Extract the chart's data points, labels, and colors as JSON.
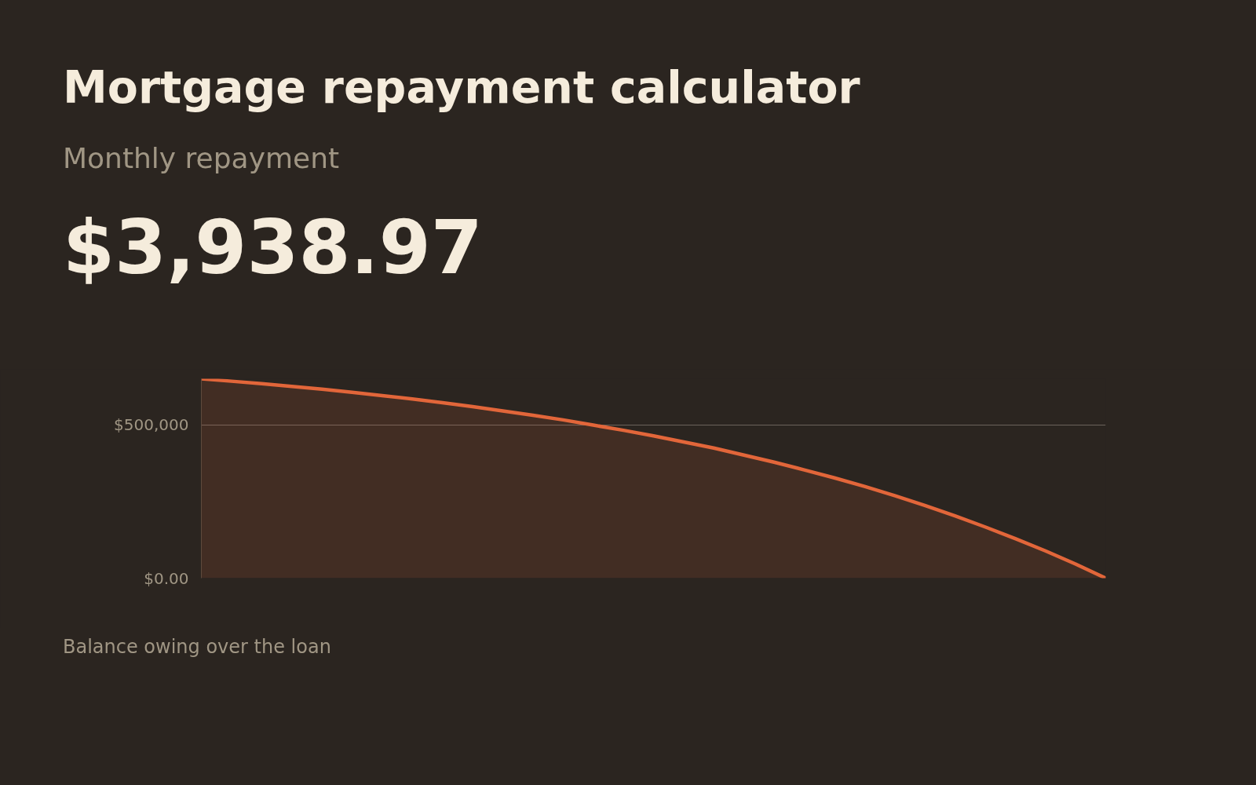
{
  "chart_data": {
    "type": "area",
    "title": "Mortgage repayment calculator",
    "subtitle": "Monthly repayment",
    "annotations": [
      "$3,938.97",
      "Balance owing over the loan"
    ],
    "categories": [
      null,
      null,
      null,
      null,
      null,
      null,
      null,
      null,
      null,
      null,
      null,
      null,
      null,
      null,
      null,
      null,
      null,
      null,
      null,
      null,
      null,
      null,
      null,
      null,
      null,
      null,
      null,
      null,
      null,
      null,
      null
    ],
    "series": [
      {
        "color": "#e2663a",
        "values": [
          650000,
          642000,
          634000,
          625000,
          616000,
          606000,
          595000,
          584000,
          572000,
          559000,
          545000,
          531000,
          516000,
          499000,
          482000,
          464000,
          444000,
          424000,
          401000,
          378000,
          353000,
          327000,
          299000,
          269000,
          237000,
          203000,
          167000,
          129000,
          89000,
          46000,
          0
        ]
      }
    ],
    "ylim": [
      0,
      650000
    ],
    "yticks": [
      {
        "value": 0,
        "label": "$0.00"
      },
      {
        "value": 500000,
        "label": "$500,000"
      }
    ],
    "grid": "y",
    "tick_labels": "y",
    "line_style": "solid"
  }
}
